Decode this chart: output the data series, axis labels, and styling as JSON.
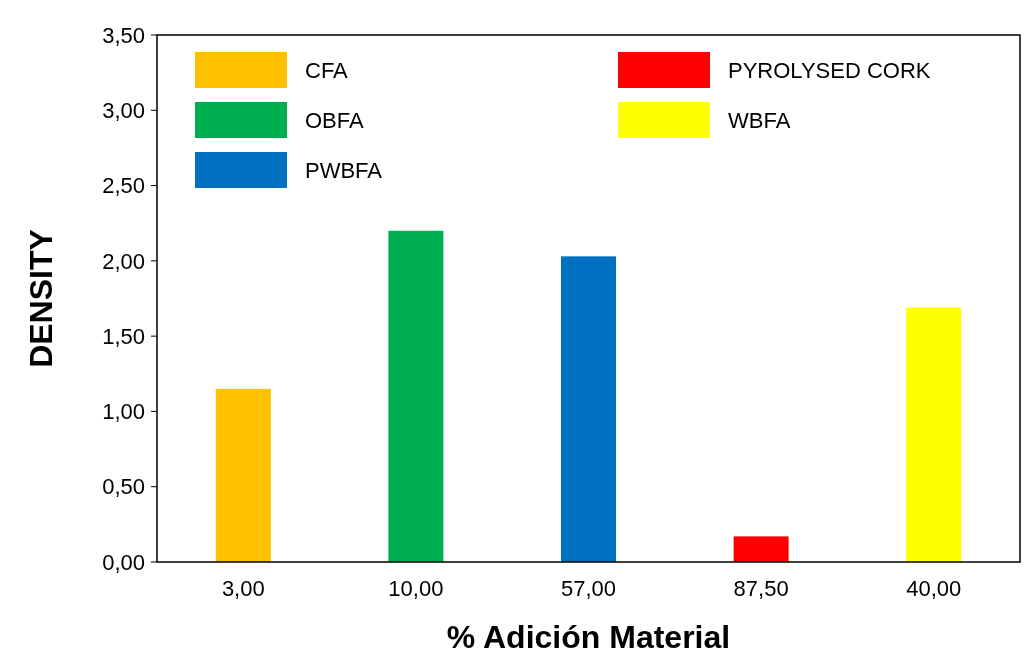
{
  "chart_data": {
    "type": "bar",
    "xlabel": "% Adición Material",
    "ylabel": "DENSITY",
    "categories": [
      "3,00",
      "10,00",
      "57,00",
      "87,50",
      "40,00"
    ],
    "series": [
      {
        "name": "CFA",
        "color": "#ffc000",
        "values": [
          1.15,
          null,
          null,
          null,
          null
        ]
      },
      {
        "name": "OBFA",
        "color": "#00b050",
        "values": [
          null,
          2.2,
          null,
          null,
          null
        ]
      },
      {
        "name": "PWBFA",
        "color": "#0070c0",
        "values": [
          null,
          null,
          2.03,
          null,
          null
        ]
      },
      {
        "name": "PYROLYSED CORK",
        "color": "#ff0000",
        "values": [
          null,
          null,
          null,
          0.17,
          null
        ]
      },
      {
        "name": "WBFA",
        "color": "#ffff00",
        "values": [
          null,
          null,
          null,
          null,
          1.69
        ]
      }
    ],
    "ylim": [
      0,
      3.5
    ],
    "yticks": [
      {
        "value": 0,
        "label": "0,00"
      },
      {
        "value": 0.5,
        "label": "0,50"
      },
      {
        "value": 1,
        "label": "1,00"
      },
      {
        "value": 1.5,
        "label": "1,50"
      },
      {
        "value": 2,
        "label": "2,00"
      },
      {
        "value": 2.5,
        "label": "2,50"
      },
      {
        "value": 3,
        "label": "3,00"
      },
      {
        "value": 3.5,
        "label": "3,50"
      }
    ],
    "grid": false,
    "legend": "top"
  }
}
